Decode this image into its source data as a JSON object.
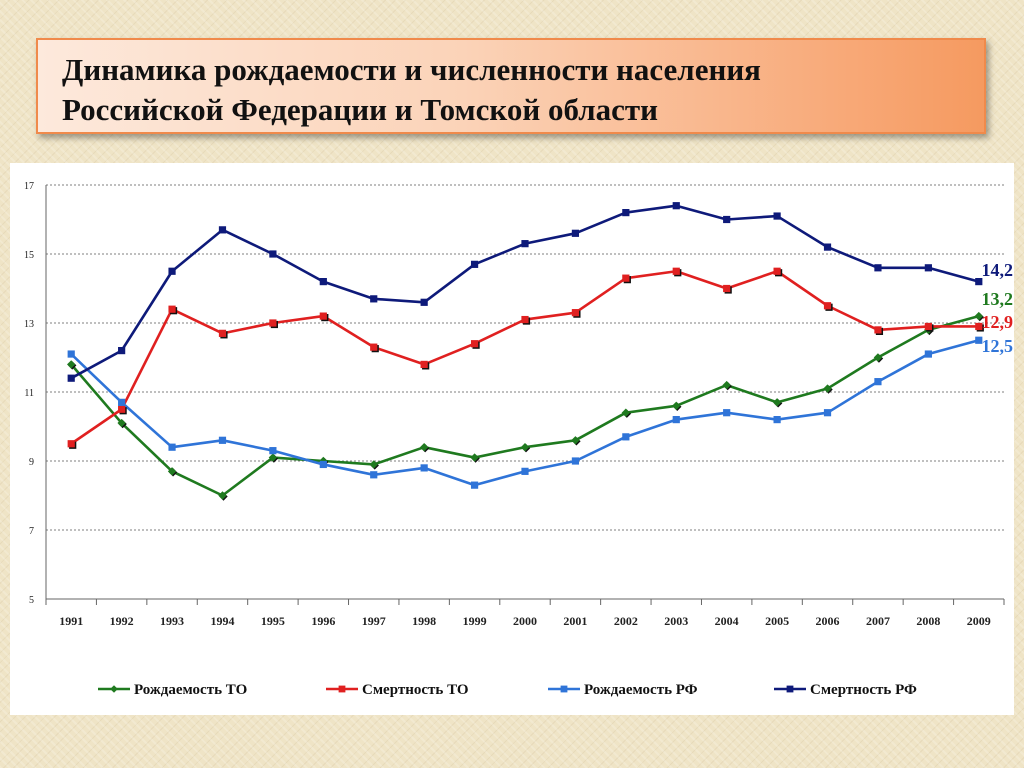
{
  "slide": {
    "title_line1": "Динамика рождаемости и численности населения",
    "title_line2": "Российской Федерации и Томской области"
  },
  "colors": {
    "birth_to": "#1f7a1f",
    "death_to": "#e02020",
    "birth_rf": "#2f74d8",
    "death_rf": "#0e1a7a",
    "marker_dark": "#000000",
    "title_fill": "#f8a978",
    "title_border": "#f08a4b"
  },
  "chart_data": {
    "type": "line",
    "title": "",
    "xlabel": "",
    "ylabel": "",
    "ylim": [
      5,
      17
    ],
    "yticks": [
      "5",
      "7",
      "9",
      "11",
      "13",
      "15",
      "17"
    ],
    "grid": "horizontal dashed",
    "legend_position": "bottom",
    "categories": [
      "1991",
      "1992",
      "1993",
      "1994",
      "1995",
      "1996",
      "1997",
      "1998",
      "1999",
      "2000",
      "2001",
      "2002",
      "2003",
      "2004",
      "2005",
      "2006",
      "2007",
      "2008",
      "2009"
    ],
    "series": [
      {
        "name": "Рождаемость ТО",
        "color": "#1f7a1f",
        "marker": "diamond",
        "values": [
          11.8,
          10.1,
          8.7,
          8.0,
          9.1,
          9.0,
          8.9,
          9.4,
          9.1,
          9.4,
          9.6,
          10.4,
          10.6,
          11.2,
          10.7,
          11.1,
          12.0,
          12.8,
          13.2
        ]
      },
      {
        "name": "Смертность ТО",
        "color": "#e02020",
        "marker": "square",
        "values": [
          9.5,
          10.5,
          13.4,
          12.7,
          13.0,
          13.2,
          12.3,
          11.8,
          12.4,
          13.1,
          13.3,
          14.3,
          14.5,
          14.0,
          14.5,
          13.5,
          12.8,
          12.9,
          12.9
        ]
      },
      {
        "name": "Рождаемость РФ",
        "color": "#2f74d8",
        "marker": "square",
        "values": [
          12.1,
          10.7,
          9.4,
          9.6,
          9.3,
          8.9,
          8.6,
          8.8,
          8.3,
          8.7,
          9.0,
          9.7,
          10.2,
          10.4,
          10.2,
          10.4,
          11.3,
          12.1,
          12.5
        ]
      },
      {
        "name": "Смертность РФ",
        "color": "#0e1a7a",
        "marker": "square",
        "values": [
          11.4,
          12.2,
          14.5,
          15.7,
          15.0,
          14.2,
          13.7,
          13.6,
          14.7,
          15.3,
          15.6,
          16.2,
          16.4,
          16.0,
          16.1,
          15.2,
          14.6,
          14.6,
          14.2
        ]
      }
    ],
    "end_labels": [
      {
        "text": "14,2",
        "color": "#0e1a7a"
      },
      {
        "text": "13,2",
        "color": "#1f7a1f"
      },
      {
        "text": "12,9",
        "color": "#e02020"
      },
      {
        "text": "12,5",
        "color": "#2f74d8"
      }
    ]
  }
}
